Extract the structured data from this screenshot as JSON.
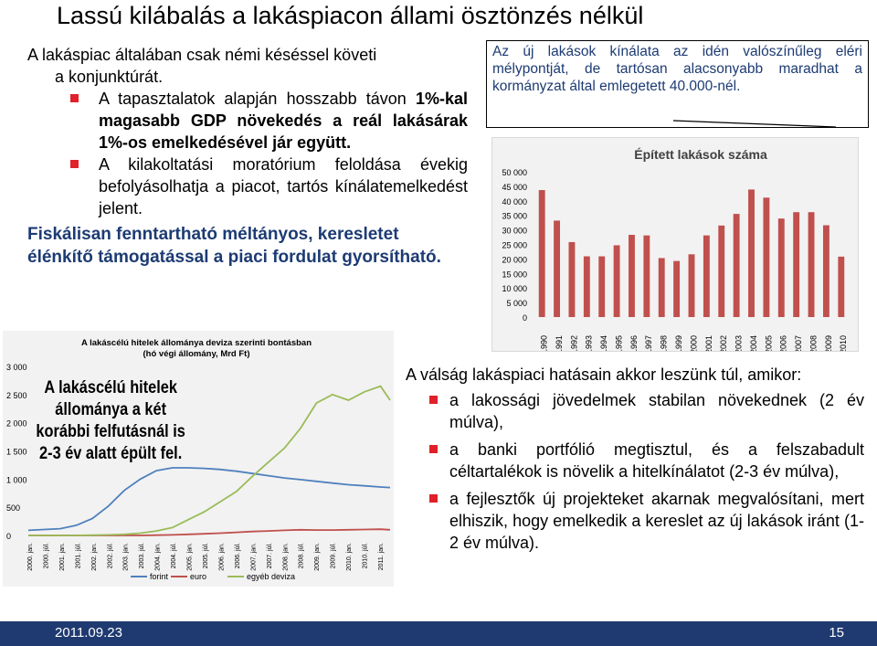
{
  "slide": {
    "title": "Lassú kilábalás a lakáspiacon állami ösztönzés nélkül",
    "intro_line1": "A lakáspiac általában csak némi késéssel követi",
    "intro_line2": "a konjunktúrát.",
    "bullets_left": [
      {
        "pre": "A tapasztalatok alapján hosszabb távon ",
        "bold": "1%-kal magasabb GDP növekedés a reál lakásárak 1%-os emelkedésével jár együtt."
      },
      {
        "pre": "A kilakoltatási moratórium feloldása évekig befolyásolhatja a piacot, tartós kínálatemelkedést jelent.",
        "bold": ""
      }
    ],
    "fiscal": "Fiskálisan fenntartható méltányos, keresletet élénkítő támogatással a piaci fordulat gyorsítható.",
    "box_text": "Az új lakások kínálata az idén valószínűleg eléri mélypontját, de tartósan alacsonyabb maradhat a kormányzat által emlegetett 40.000-nél.",
    "right_intro": "A válság lakáspiaci hatásain akkor leszünk túl, amikor:",
    "right_bullets": [
      "a lakossági jövedelmek stabilan növekednek (2 év múlva),",
      "a banki portfólió megtisztul, és a felszabadult céltartalékok is növelik a hitelkínálatot (2-3 év múlva),",
      "a fejlesztők új projekteket akarnak megvalósítani, mert elhiszik, hogy emelkedik a kereslet az új lakások iránt (1-2 év múlva)."
    ],
    "overlay_text": "A lakáscélú hitelek állománya a két korábbi felfutásnál is 2-3 év alatt épült fel.",
    "footer_date": "2011.09.23",
    "footer_page": "15"
  },
  "colors": {
    "accent_blue": "#1d3b73",
    "bullet_red": "#e0202a",
    "bar_red": "#c0504d",
    "footer": "#1f3a70",
    "forint": "#4f81bd",
    "euro": "#c0504d",
    "egyeb": "#9bbb59"
  },
  "chart_data": [
    {
      "type": "bar",
      "title": "Épített lakások száma",
      "categories": [
        "1990",
        "1991",
        "1992",
        "1993",
        "1994",
        "1995",
        "1996",
        "1997",
        "1998",
        "1999",
        "2000",
        "2001",
        "2002",
        "2003",
        "2004",
        "2005",
        "2006",
        "2007",
        "2008",
        "2009",
        "2010"
      ],
      "values": [
        43700,
        33200,
        25800,
        20900,
        20900,
        24700,
        28300,
        28100,
        20300,
        19300,
        21600,
        28100,
        31500,
        35500,
        43900,
        41100,
        33900,
        36100,
        36100,
        31600,
        20800
      ],
      "yticks": [
        "0",
        "5 000",
        "10 000",
        "15 000",
        "20 000",
        "25 000",
        "30 000",
        "35 000",
        "40 000",
        "45 000",
        "50 000"
      ],
      "ylim": [
        0,
        50000
      ],
      "grid": false
    },
    {
      "type": "line",
      "title": "A lakáscélú hitelek állománya deviza szerinti bontásban",
      "subtitle": "(hó végi állomány, Mrd Ft)",
      "yticks": [
        "0",
        "500",
        "1 000",
        "1 500",
        "2 000",
        "2 500",
        "3 000"
      ],
      "ylim": [
        0,
        3000
      ],
      "xticks": [
        "2000. jan.",
        "2000. júl.",
        "2001. jan.",
        "2001. júl.",
        "2002. jan.",
        "2002. júl.",
        "2003. jan.",
        "2003. júl.",
        "2004. jan.",
        "2004. júl.",
        "2005. jan.",
        "2005. júl.",
        "2006. jan.",
        "2006. júl.",
        "2007. jan.",
        "2007. júl.",
        "2008. jan.",
        "2008. júl.",
        "2009. jan.",
        "2009. júl.",
        "2010. jan.",
        "2010. júl.",
        "2011. jan."
      ],
      "x": [
        2000.0,
        2000.5,
        2001.0,
        2001.5,
        2002.0,
        2002.5,
        2003.0,
        2003.5,
        2004.0,
        2004.5,
        2005.0,
        2005.5,
        2006.0,
        2006.5,
        2007.0,
        2007.5,
        2008.0,
        2008.5,
        2009.0,
        2009.5,
        2010.0,
        2010.5,
        2011.0,
        2011.3
      ],
      "series": [
        {
          "name": "forint",
          "values": [
            90,
            105,
            120,
            180,
            300,
            520,
            800,
            1000,
            1150,
            1200,
            1200,
            1190,
            1170,
            1140,
            1100,
            1060,
            1020,
            990,
            960,
            930,
            900,
            880,
            860,
            850
          ]
        },
        {
          "name": "euro",
          "values": [
            0,
            0,
            0,
            0,
            0,
            0,
            0,
            0,
            5,
            10,
            20,
            30,
            40,
            55,
            70,
            80,
            90,
            100,
            95,
            95,
            100,
            105,
            110,
            100
          ]
        },
        {
          "name": "egyéb deviza",
          "values": [
            0,
            0,
            0,
            0,
            5,
            10,
            20,
            40,
            80,
            140,
            280,
            420,
            600,
            780,
            1050,
            1300,
            1550,
            1900,
            2350,
            2500,
            2400,
            2550,
            2650,
            2400
          ]
        }
      ],
      "legend": "bottom"
    }
  ]
}
